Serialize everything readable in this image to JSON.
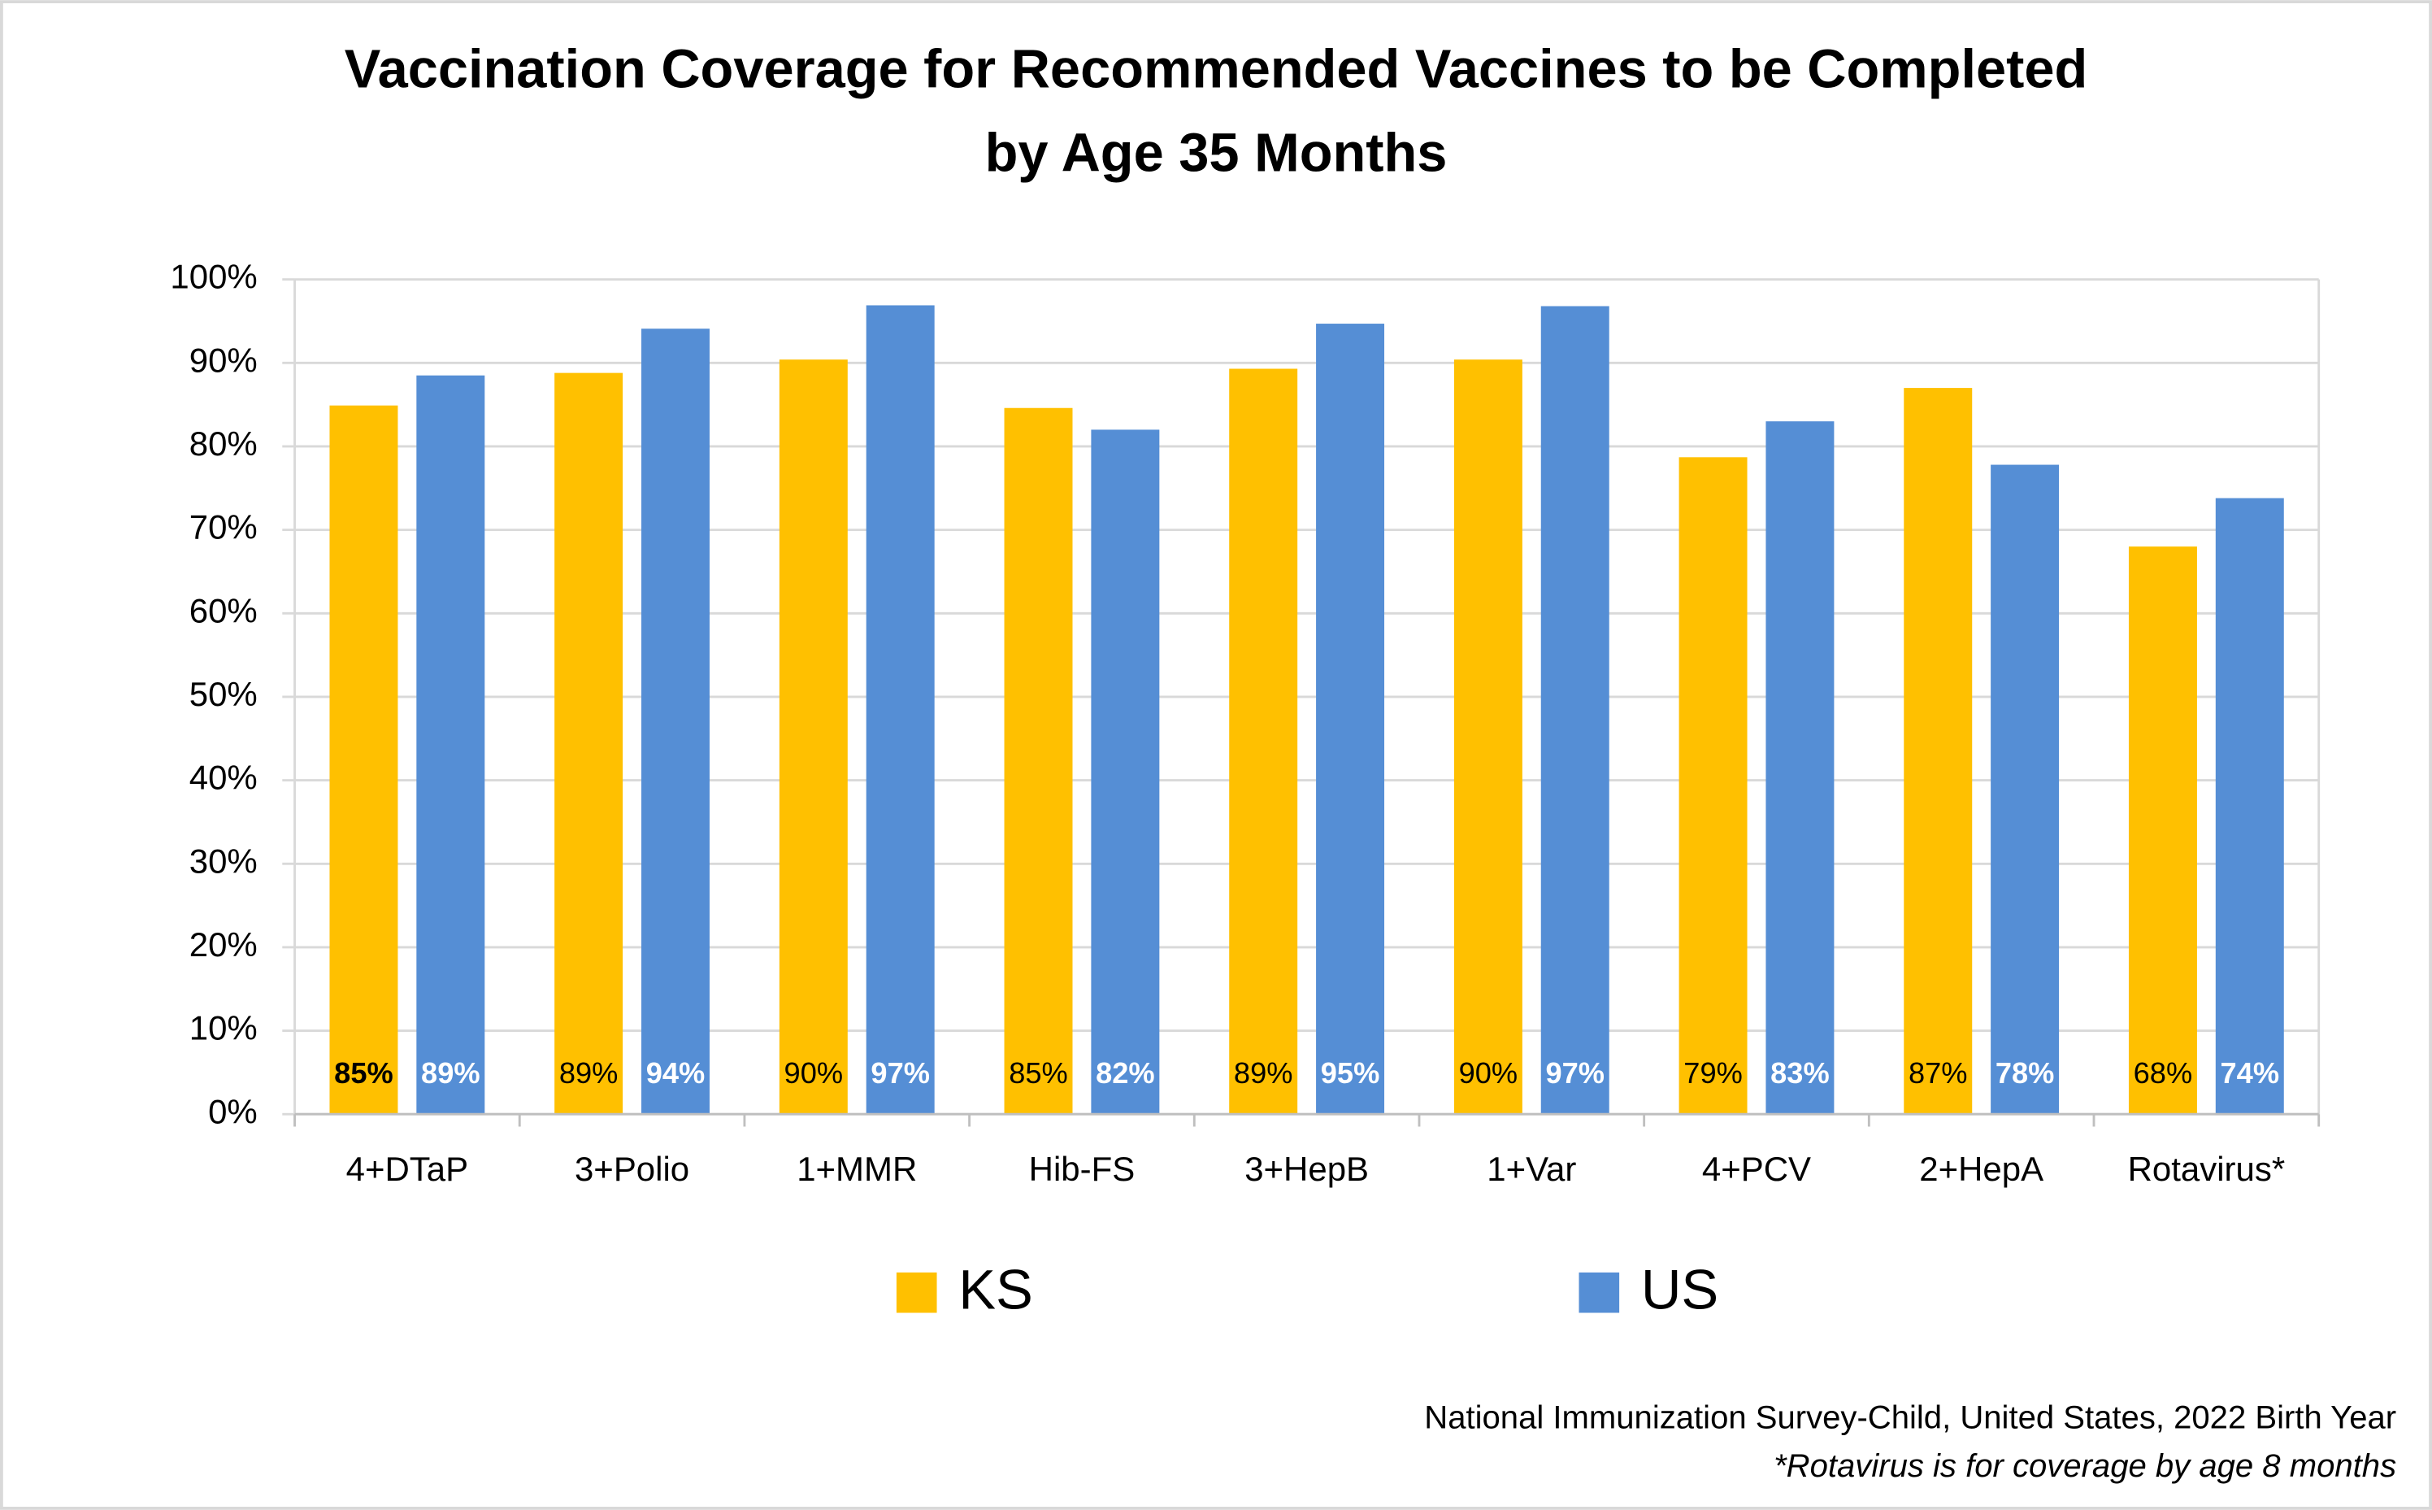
{
  "chart_data": {
    "type": "bar",
    "title": [
      "Vaccination Coverage for Recommended Vaccines to be Completed",
      "by Age 35 Months"
    ],
    "categories": [
      "4+DTaP",
      "3+Polio",
      "1+MMR",
      "Hib-FS",
      "3+HepB",
      "1+Var",
      "4+PCV",
      "2+HepA",
      "Rotavirus*"
    ],
    "series": [
      {
        "name": "KS",
        "color": "#ffc000",
        "values": [
          84.9,
          88.8,
          90.4,
          84.6,
          89.3,
          90.4,
          78.7,
          87.0,
          68.0
        ],
        "value_labels": [
          "85%",
          "89%",
          "90%",
          "85%",
          "89%",
          "90%",
          "79%",
          "87%",
          "68%"
        ]
      },
      {
        "name": "US",
        "color": "#558ed5",
        "values": [
          88.5,
          94.1,
          96.9,
          82.0,
          94.7,
          96.8,
          83.0,
          77.8,
          73.8
        ],
        "value_labels": [
          "89%",
          "94%",
          "97%",
          "82%",
          "95%",
          "97%",
          "83%",
          "78%",
          "74%"
        ]
      }
    ],
    "ylim": [
      0,
      100
    ],
    "yticks": [
      {
        "value": 0,
        "label": "0%"
      },
      {
        "value": 10,
        "label": "10%"
      },
      {
        "value": 20,
        "label": "20%"
      },
      {
        "value": 30,
        "label": "30%"
      },
      {
        "value": 40,
        "label": "40%"
      },
      {
        "value": 50,
        "label": "50%"
      },
      {
        "value": 60,
        "label": "60%"
      },
      {
        "value": 70,
        "label": "70%"
      },
      {
        "value": 80,
        "label": "80%"
      },
      {
        "value": 90,
        "label": "90%"
      },
      {
        "value": 100,
        "label": "100%"
      }
    ],
    "grid": true,
    "legend": "bottom",
    "source": "National Immunization Survey-Child, United States, 2022 Birth Year",
    "note": "*Rotavirus is for coverage by age 8 months"
  }
}
